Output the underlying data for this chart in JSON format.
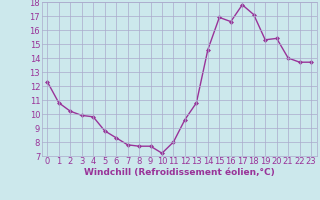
{
  "x": [
    0,
    1,
    2,
    3,
    4,
    5,
    6,
    7,
    8,
    9,
    10,
    11,
    12,
    13,
    14,
    15,
    16,
    17,
    18,
    19,
    20,
    21,
    22,
    23
  ],
  "y": [
    12.3,
    10.8,
    10.2,
    9.9,
    9.8,
    8.8,
    8.3,
    7.8,
    7.7,
    7.7,
    7.2,
    8.0,
    9.6,
    10.8,
    14.6,
    16.9,
    16.6,
    17.8,
    17.1,
    15.3,
    15.4,
    14.0,
    13.7,
    13.7
  ],
  "xlabel": "Windchill (Refroidissement éolien,°C)",
  "ylim": [
    7,
    18
  ],
  "xlim": [
    -0.5,
    23.5
  ],
  "yticks": [
    7,
    8,
    9,
    10,
    11,
    12,
    13,
    14,
    15,
    16,
    17,
    18
  ],
  "xticks": [
    0,
    1,
    2,
    3,
    4,
    5,
    6,
    7,
    8,
    9,
    10,
    11,
    12,
    13,
    14,
    15,
    16,
    17,
    18,
    19,
    20,
    21,
    22,
    23
  ],
  "line_color": "#993399",
  "marker": "D",
  "marker_size": 2.0,
  "bg_color": "#cce8ec",
  "grid_color": "#aaaacc",
  "label_color": "#993399",
  "xlabel_fontsize": 6.5,
  "tick_fontsize": 6.0,
  "linewidth": 1.0
}
